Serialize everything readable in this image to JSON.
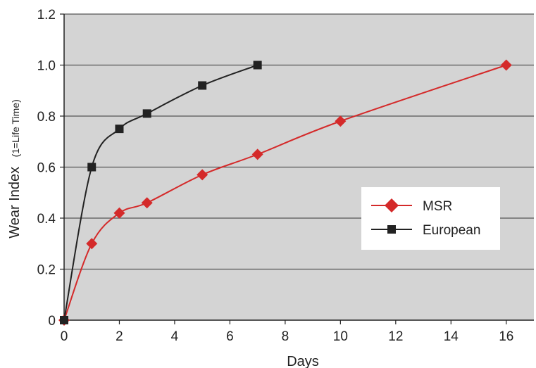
{
  "chart_data": {
    "type": "line",
    "xlabel": "Days",
    "ylabel": "Wear Index",
    "ylabel_sub": "(1=Life Time)",
    "xlim": [
      0,
      17
    ],
    "ylim": [
      0,
      1.2
    ],
    "x_ticks": [
      0,
      2,
      4,
      6,
      8,
      10,
      12,
      14,
      16
    ],
    "y_ticks": [
      0,
      0.2,
      0.4,
      0.6,
      0.8,
      1.0,
      1.2
    ],
    "x_tick_labels": [
      "0",
      "2",
      "4",
      "6",
      "8",
      "10",
      "12",
      "14",
      "16"
    ],
    "y_tick_labels": [
      "0",
      "0.2",
      "0.4",
      "0.6",
      "0.8",
      "1.0",
      "1.2"
    ],
    "grid": "horizontal",
    "plot_background": "#d4d4d4",
    "legend": {
      "position": "right-middle",
      "entries": [
        "MSR",
        "European"
      ]
    },
    "series": [
      {
        "name": "MSR",
        "color": "#d42a2a",
        "marker": "diamond",
        "x": [
          0,
          1,
          2,
          3,
          5,
          7,
          10,
          16
        ],
        "y": [
          0,
          0.3,
          0.42,
          0.46,
          0.57,
          0.65,
          0.78,
          1.0
        ]
      },
      {
        "name": "European",
        "color": "#222222",
        "marker": "square",
        "x": [
          0,
          1,
          2,
          3,
          5,
          7
        ],
        "y": [
          0,
          0.6,
          0.75,
          0.81,
          0.92,
          1.0
        ]
      }
    ]
  }
}
